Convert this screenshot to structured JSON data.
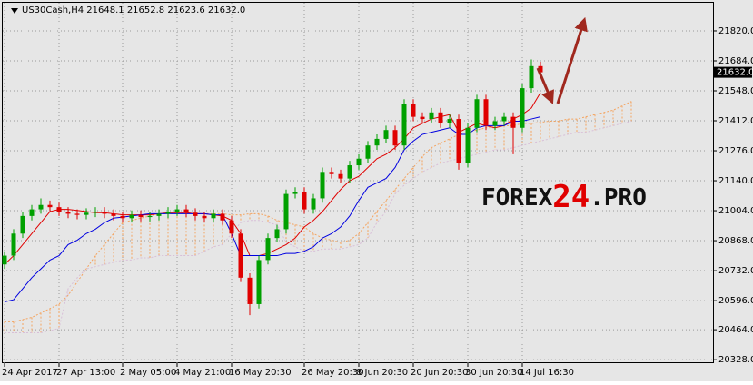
{
  "chart_data": {
    "type": "candlestick",
    "title": "US30Cash,H4  21648.1 21652.8 21623.6 21632.0",
    "watermark": [
      "FOREX",
      "24",
      ".PRO"
    ],
    "categories": [
      "24 Apr 2017",
      null,
      null,
      null,
      null,
      null,
      "27 Apr 13:00",
      null,
      null,
      null,
      null,
      null,
      null,
      "2 May 05:00",
      null,
      null,
      null,
      null,
      null,
      "4 May 21:00",
      null,
      null,
      null,
      null,
      null,
      "16 May 20:30",
      null,
      null,
      null,
      null,
      null,
      null,
      null,
      "26 May 20:30",
      null,
      null,
      null,
      null,
      null,
      "8 Jun 20:30",
      null,
      null,
      null,
      null,
      null,
      "20 Jun 20:30",
      null,
      null,
      null,
      null,
      null,
      "30 Jun 20:30",
      null,
      null,
      null,
      null,
      null,
      "14 Jul 16:30",
      null,
      null,
      null,
      null,
      null,
      null,
      null,
      null,
      null,
      null,
      null,
      null
    ],
    "ylim": [
      20312,
      21960
    ],
    "yticks": [
      {
        "value": 21820,
        "label": "21820.0"
      },
      {
        "value": 21684,
        "label": "21684.0"
      },
      {
        "value": 21548,
        "label": "21548.0"
      },
      {
        "value": 21412,
        "label": "21412.0"
      },
      {
        "value": 21276,
        "label": "21276.0"
      },
      {
        "value": 21140,
        "label": "21140.0"
      },
      {
        "value": 21004,
        "label": "21004.0"
      },
      {
        "value": 20868,
        "label": "20868.0"
      },
      {
        "value": 20732,
        "label": "20732.0"
      },
      {
        "value": 20596,
        "label": "20596.0"
      },
      {
        "value": 20464,
        "label": "20464.0"
      },
      {
        "value": 20328,
        "label": "20328.0"
      }
    ],
    "grid": true,
    "current_price": {
      "value": 21632,
      "label": "21632.0"
    },
    "up_color": "#00a000",
    "down_color": "#e00000",
    "candles": {
      "open": [
        20760,
        20800,
        20900,
        20980,
        21010,
        21030,
        21020,
        21000,
        20990,
        20985,
        20995,
        21000,
        20990,
        20980,
        20970,
        20985,
        20975,
        20980,
        20990,
        21000,
        21010,
        20995,
        20980,
        20970,
        20990,
        20960,
        20900,
        20700,
        20580,
        20780,
        20880,
        20920,
        21080,
        21090,
        21010,
        21060,
        21180,
        21170,
        21150,
        21210,
        21240,
        21300,
        21330,
        21370,
        21300,
        21490,
        21430,
        21420,
        21450,
        21400,
        21420,
        21220,
        21380,
        21510,
        21390,
        21410,
        21430,
        21380,
        21560,
        21660,
        null,
        null,
        null,
        null,
        null,
        null,
        null,
        null,
        null,
        null
      ],
      "high": [
        20820,
        20920,
        21000,
        21030,
        21060,
        21050,
        21040,
        21020,
        21010,
        21015,
        21020,
        21020,
        21010,
        21000,
        21005,
        21005,
        21000,
        21010,
        21020,
        21030,
        21030,
        21015,
        21000,
        21010,
        21010,
        20980,
        20920,
        20720,
        20800,
        20900,
        20940,
        21100,
        21110,
        21110,
        21080,
        21200,
        21200,
        21190,
        21230,
        21260,
        21320,
        21350,
        21390,
        21390,
        21510,
        21510,
        21450,
        21470,
        21470,
        21440,
        21440,
        21400,
        21530,
        21530,
        21430,
        21450,
        21450,
        21580,
        21690,
        21680,
        null,
        null,
        null,
        null,
        null,
        null,
        null,
        null,
        null,
        null
      ],
      "low": [
        20740,
        20780,
        20880,
        20960,
        20990,
        21000,
        20980,
        20970,
        20965,
        20965,
        20975,
        20970,
        20960,
        20950,
        20950,
        20955,
        20955,
        20960,
        20970,
        20980,
        20975,
        20960,
        20950,
        20950,
        20940,
        20880,
        20680,
        20530,
        20560,
        20760,
        20860,
        20900,
        21060,
        20990,
        20990,
        21040,
        21150,
        21130,
        21130,
        21190,
        21220,
        21280,
        21310,
        21280,
        21280,
        21410,
        21400,
        21400,
        21380,
        21380,
        21190,
        21200,
        21360,
        21370,
        21370,
        21390,
        21260,
        21360,
        21540,
        21620,
        null,
        null,
        null,
        null,
        null,
        null,
        null,
        null,
        null,
        null
      ],
      "close": [
        20800,
        20900,
        20980,
        21010,
        21030,
        21020,
        21000,
        20990,
        20985,
        20995,
        21000,
        20990,
        20980,
        20970,
        20985,
        20975,
        20980,
        20990,
        21000,
        21010,
        20995,
        20980,
        20970,
        20990,
        20960,
        20900,
        20700,
        20580,
        20780,
        20880,
        20920,
        21080,
        21090,
        21010,
        21060,
        21180,
        21170,
        21150,
        21210,
        21240,
        21300,
        21330,
        21370,
        21300,
        21490,
        21430,
        21420,
        21450,
        21400,
        21420,
        21220,
        21380,
        21510,
        21390,
        21410,
        21430,
        21380,
        21560,
        21660,
        21632,
        null,
        null,
        null,
        null,
        null,
        null,
        null,
        null,
        null,
        null
      ]
    },
    "series": [
      {
        "color": "#e00000",
        "values": [
          20760,
          20800,
          20850,
          20900,
          20950,
          21000,
          21010,
          21010,
          21005,
          21000,
          20995,
          20995,
          20990,
          20985,
          20985,
          20985,
          20985,
          20990,
          20995,
          20995,
          20995,
          20990,
          20990,
          20985,
          20980,
          20960,
          20900,
          20800,
          20800,
          20810,
          20830,
          20850,
          20880,
          20930,
          20960,
          21000,
          21050,
          21100,
          21140,
          21160,
          21200,
          21240,
          21260,
          21290,
          21330,
          21380,
          21400,
          21420,
          21430,
          21440,
          21360,
          21380,
          21400,
          21390,
          21380,
          21390,
          21420,
          21440,
          21470,
          21540,
          null,
          null,
          null,
          null,
          null,
          null,
          null,
          null,
          null,
          null
        ]
      },
      {
        "color": "#0000e0",
        "values": [
          20590,
          20600,
          20650,
          20700,
          20740,
          20780,
          20800,
          20850,
          20870,
          20900,
          20920,
          20950,
          20970,
          20975,
          20980,
          20985,
          20990,
          20990,
          20990,
          20990,
          20990,
          20990,
          20990,
          20985,
          20985,
          20900,
          20800,
          20800,
          20800,
          20800,
          20800,
          20810,
          20810,
          20820,
          20840,
          20880,
          20900,
          20930,
          20980,
          21050,
          21110,
          21130,
          21150,
          21200,
          21280,
          21320,
          21350,
          21360,
          21370,
          21380,
          21350,
          21350,
          21380,
          21390,
          21390,
          21390,
          21410,
          21410,
          21420,
          21430,
          null,
          null,
          null,
          null,
          null,
          null,
          null,
          null,
          null,
          null
        ]
      }
    ],
    "cloud": {
      "up_color": "#f4a460",
      "down_color": "#d8bfd8",
      "span_a": [
        20500,
        20500,
        20510,
        20520,
        20540,
        20560,
        20580,
        20620,
        20680,
        20740,
        20800,
        20850,
        20900,
        20950,
        20960,
        20970,
        20980,
        20990,
        20990,
        20995,
        20995,
        20990,
        20990,
        20990,
        20990,
        20985,
        20985,
        20990,
        20990,
        20980,
        20960,
        20950,
        20940,
        20930,
        20900,
        20880,
        20870,
        20860,
        20870,
        20900,
        20950,
        21000,
        21050,
        21100,
        21150,
        21200,
        21250,
        21290,
        21310,
        21330,
        21350,
        21360,
        21370,
        21380,
        21380,
        21390,
        21390,
        21400,
        21400,
        21405,
        21410,
        21410,
        21420,
        21420,
        21430,
        21440,
        21450,
        21460,
        21480,
        21500
      ],
      "span_b": [
        20450,
        20450,
        20450,
        20450,
        20450,
        20460,
        20470,
        20650,
        20700,
        20740,
        20750,
        20760,
        20770,
        20780,
        20780,
        20790,
        20790,
        20800,
        20800,
        20800,
        20800,
        20800,
        20820,
        20840,
        20850,
        20900,
        20950,
        20960,
        20960,
        20950,
        20940,
        20860,
        20840,
        20820,
        20820,
        20830,
        20830,
        20830,
        20840,
        20850,
        20880,
        20950,
        21000,
        21080,
        21120,
        21150,
        21180,
        21200,
        21220,
        21230,
        21240,
        21250,
        21260,
        21270,
        21280,
        21280,
        21290,
        21300,
        21310,
        21320,
        21330,
        21340,
        21350,
        21360,
        21360,
        21370,
        21380,
        21390,
        21400,
        21410
      ]
    }
  }
}
